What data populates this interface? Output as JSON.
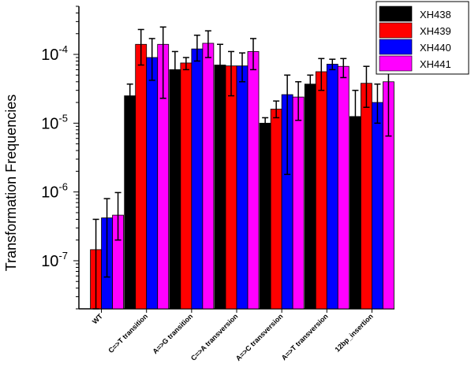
{
  "chart_data": {
    "type": "bar",
    "scale": "log",
    "ylabel": "Transformation Frequencies",
    "xlabel": "",
    "ylim": [
      2e-08,
      0.0005
    ],
    "yticks": [
      {
        "value": 1e-07,
        "base": "10",
        "exp": "-7"
      },
      {
        "value": 1e-06,
        "base": "10",
        "exp": "-6"
      },
      {
        "value": 1e-05,
        "base": "10",
        "exp": "-5"
      },
      {
        "value": 0.0001,
        "base": "10",
        "exp": "-4"
      }
    ],
    "categories": [
      "WT",
      "C=>T transition",
      "A=>G transition",
      "C=>A transversion",
      "A=>C transversion",
      "A=>T transversion",
      "12bp_insertion"
    ],
    "legend_position": "top-right",
    "series": [
      {
        "name": "XH438",
        "color": "#000000",
        "values": [
          null,
          2.5e-05,
          6e-05,
          7e-05,
          1e-05,
          3.7e-05,
          1.25e-05
        ],
        "err_low": [
          null,
          1.9e-05,
          4e-05,
          4.5e-05,
          8.5e-06,
          3e-05,
          3.5e-06
        ],
        "err_high": [
          null,
          3.7e-05,
          0.00011,
          0.00014,
          1.2e-05,
          5e-05,
          3e-05
        ]
      },
      {
        "name": "XH439",
        "color": "#ff0000",
        "values": [
          1.45e-07,
          0.00014,
          7.5e-05,
          6.8e-05,
          1.6e-05,
          5.6e-05,
          3.8e-05
        ],
        "err_low": [
          2e-08,
          7e-05,
          6e-05,
          2.5e-05,
          1.2e-05,
          3e-05,
          1.7e-05
        ],
        "err_high": [
          4e-07,
          0.00023,
          9e-05,
          0.00011,
          2.1e-05,
          8.7e-05,
          6.7e-05
        ]
      },
      {
        "name": "XH440",
        "color": "#0000ff",
        "values": [
          4.2e-07,
          9e-05,
          0.00012,
          6.8e-05,
          2.6e-05,
          7.2e-05,
          2e-05
        ],
        "err_low": [
          5.8e-08,
          4.2e-05,
          8e-05,
          4e-05,
          1.8e-06,
          6e-05,
          1e-05
        ],
        "err_high": [
          8e-07,
          0.00017,
          0.00019,
          0.000105,
          5e-05,
          8.5e-05,
          3.7e-05
        ]
      },
      {
        "name": "XH441",
        "color": "#ff00ff",
        "values": [
          4.6e-07,
          0.00014,
          0.000145,
          0.00011,
          2.4e-05,
          6.7e-05,
          4e-05
        ],
        "err_low": [
          2e-07,
          2.3e-05,
          9e-05,
          6e-05,
          1.1e-05,
          4.6e-05,
          6.5e-06
        ],
        "err_high": [
          9.8e-07,
          0.00025,
          0.00022,
          0.00017,
          4e-05,
          8.7e-05,
          7.3e-05
        ]
      }
    ]
  }
}
